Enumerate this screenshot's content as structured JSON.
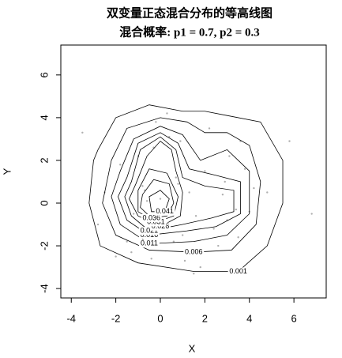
{
  "chart_data": {
    "type": "contour",
    "title": "双变量正态混合分布的等高线图",
    "subtitle": "混合概率: p1 = 0.7, p2 = 0.3",
    "x_label": "X",
    "y_label": "Y",
    "xlim": [
      -4.47,
      7.45
    ],
    "ylim": [
      -4.44,
      7.4
    ],
    "xticks": [
      -4,
      -2,
      0,
      2,
      4,
      6
    ],
    "yticks": [
      -4,
      -2,
      0,
      2,
      4,
      6
    ],
    "point_color": "#b0b0b0",
    "line_color": "#000000",
    "points": {
      "x": [
        -2.5,
        -1.8,
        -1.2,
        -0.8,
        -0.5,
        -0.3,
        0,
        0.2,
        0.4,
        0.7,
        1,
        1.3,
        -1.5,
        -1,
        -0.6,
        0.1,
        0.5,
        0.9,
        1.6,
        2,
        2.4,
        2.8,
        3.1,
        3.4,
        3.8,
        4.2,
        2.2,
        2.6,
        3,
        3.5,
        4,
        -2,
        -0.4,
        0.3,
        1.1,
        1.8,
        -3.5,
        5.8,
        6.8,
        -2.8,
        4.8,
        1.5,
        -0.2,
        0.6,
        2.9,
        3.6,
        -1.3,
        0.8,
        0,
        -0.7
      ],
      "y": [
        0.5,
        1.8,
        -0.5,
        0.8,
        -1.2,
        2.6,
        0.2,
        -0.3,
        3.1,
        1.2,
        -1.5,
        0.5,
        -1.8,
        2.2,
        0.1,
        -0.8,
        -0.2,
        2.9,
        -0.6,
        1.5,
        -1.2,
        0.4,
        2.2,
        -0.3,
        1.6,
        0.7,
        3.5,
        -2,
        -0.8,
        -1.6,
        -0.4,
        -2.5,
        -2.6,
        4.2,
        -2.7,
        -3,
        3.3,
        2.9,
        -0.5,
        -1,
        0.5,
        -3.3,
        3.8,
        -1.8,
        1,
        2.9,
        -2.3,
        0.9,
        -0.6,
        0.6
      ]
    },
    "contours": [
      {
        "level": 0.001,
        "x": [
          -2.8,
          -2,
          -0.5,
          1,
          2,
          3,
          4.5,
          5.5,
          5.5,
          4.8,
          3.5,
          1.5,
          -1,
          -2.7,
          -3.2,
          -3
        ],
        "y": [
          2.5,
          4,
          4.6,
          4.3,
          4.3,
          4.1,
          3.8,
          2,
          0,
          -2,
          -3.2,
          -3.2,
          -2.8,
          -2,
          0,
          2
        ]
      },
      {
        "level": 0.006,
        "x": [
          -2.2,
          -1.5,
          0,
          1.2,
          2,
          3,
          4,
          4.5,
          4.3,
          3.2,
          1.5,
          -0.5,
          -2,
          -2.6
        ],
        "y": [
          2,
          3.5,
          4,
          3.8,
          3.3,
          3.3,
          2.7,
          1,
          -1,
          -2.2,
          -2.3,
          -2.2,
          -1.5,
          0
        ]
      },
      {
        "level": 0.011,
        "x": [
          -1.8,
          -1.2,
          0,
          1,
          1.8,
          3,
          4,
          4,
          3,
          1.5,
          -0.5,
          -1.8,
          -2.2
        ],
        "y": [
          1.5,
          3,
          3.6,
          3.2,
          2,
          2.5,
          1.5,
          -0.5,
          -1.5,
          -1.8,
          -1.9,
          -1,
          0.3
        ]
      },
      {
        "level": 0.016,
        "x": [
          -1.5,
          -1,
          0,
          0.8,
          1.3,
          2.5,
          3.6,
          3.6,
          2.5,
          1.2,
          -0.5,
          -1.5,
          -1.9
        ],
        "y": [
          1.2,
          2.8,
          3.3,
          2.8,
          1.6,
          1.3,
          1,
          -0.5,
          -1.1,
          -1.3,
          -1.5,
          -0.8,
          0.3
        ]
      },
      {
        "level": 0.021,
        "x": [
          -1.3,
          -0.9,
          0,
          0.7,
          1,
          2,
          3.3,
          3.3,
          2.3,
          1,
          -0.5,
          -1.3,
          -1.6
        ],
        "y": [
          1,
          2.5,
          3.1,
          2.5,
          1.2,
          0.8,
          0.6,
          -0.4,
          -0.7,
          -1,
          -1.3,
          -0.6,
          0.3
        ]
      },
      {
        "level": 0.026,
        "x": [
          -1.1,
          -0.6,
          0,
          0.5,
          0.7,
          1,
          0.9,
          0,
          -1,
          -1.4
        ],
        "y": [
          0.9,
          2.2,
          2.9,
          2.5,
          1.5,
          0.5,
          -0.6,
          -1.1,
          -0.6,
          0.2
        ]
      },
      {
        "level": 0.031,
        "x": [
          -1,
          -0.5,
          0.3,
          0.8,
          0.6,
          -0.2,
          -1
        ],
        "y": [
          0.6,
          1.6,
          1.4,
          0.3,
          -0.6,
          -0.9,
          -0.4
        ]
      },
      {
        "level": 0.036,
        "x": [
          -0.8,
          -0.3,
          0.4,
          0.6,
          0.3,
          -0.4,
          -0.9
        ],
        "y": [
          0.4,
          1.1,
          0.9,
          0,
          -0.6,
          -0.7,
          -0.2
        ]
      },
      {
        "level": 0.041,
        "x": [
          -0.5,
          0,
          0.4,
          0.2,
          -0.4
        ],
        "y": [
          0.3,
          0.6,
          0.2,
          -0.4,
          -0.4
        ]
      }
    ]
  }
}
